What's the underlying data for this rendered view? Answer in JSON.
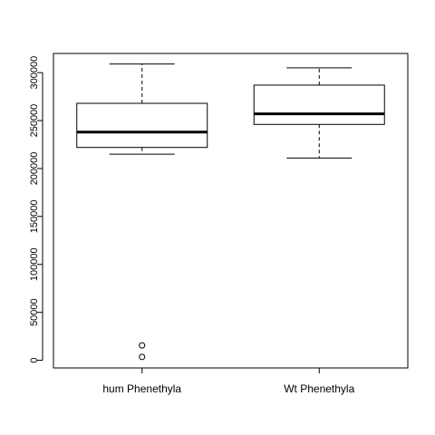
{
  "chart_data": {
    "type": "boxplot",
    "title": "",
    "xlabel": "",
    "ylabel": "",
    "ylim": [
      -8000,
      320000
    ],
    "y_ticks": [
      0,
      50000,
      100000,
      150000,
      200000,
      250000,
      300000
    ],
    "y_tick_labels": [
      "0",
      "50000",
      "100000",
      "150000",
      "200000",
      "250000",
      "300000"
    ],
    "grid": false,
    "categories": [
      "hum Phenethyla",
      "Wt Phenethyla"
    ],
    "boxes": [
      {
        "whisker_low": 215000,
        "q1": 222000,
        "median": 238000,
        "q3": 268000,
        "whisker_high": 309000,
        "outliers": [
          15500,
          3500
        ]
      },
      {
        "whisker_low": 211000,
        "q1": 246000,
        "median": 257000,
        "q3": 287000,
        "whisker_high": 305000,
        "outliers": []
      }
    ]
  }
}
